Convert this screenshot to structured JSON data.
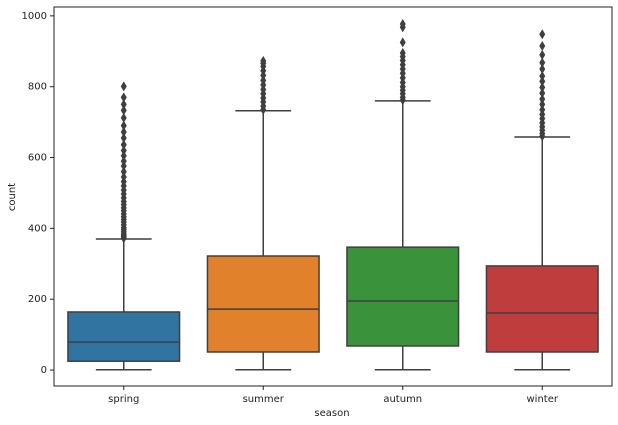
{
  "chart_data": {
    "type": "box",
    "x_label": "season",
    "y_label": "count",
    "categories": [
      "spring",
      "summer",
      "autumn",
      "winter"
    ],
    "series": [
      {
        "name": "spring",
        "color": "#3274a1",
        "low": 1,
        "q1": 25,
        "median": 79,
        "q3": 164,
        "high": 370,
        "outliers": [
          372,
          376,
          380,
          384,
          390,
          396,
          402,
          410,
          418,
          425,
          433,
          441,
          450,
          458,
          467,
          476,
          486,
          497,
          508,
          520,
          532,
          545,
          560,
          576,
          590,
          605,
          620,
          636,
          655,
          672,
          690,
          712,
          733,
          750,
          770,
          801
        ]
      },
      {
        "name": "summer",
        "color": "#e1812c",
        "low": 1,
        "q1": 51,
        "median": 172,
        "q3": 322,
        "high": 732,
        "outliers": [
          735,
          745,
          757,
          768,
          780,
          792,
          805,
          818,
          832,
          845,
          857,
          866,
          873
        ]
      },
      {
        "name": "autumn",
        "color": "#3a923a",
        "low": 1,
        "q1": 68,
        "median": 195,
        "q3": 347,
        "high": 760,
        "outliers": [
          762,
          770,
          780,
          790,
          800,
          812,
          825,
          838,
          850,
          862,
          874,
          885,
          895,
          925,
          968,
          977
        ]
      },
      {
        "name": "winter",
        "color": "#c03d3e",
        "low": 1,
        "q1": 51,
        "median": 161,
        "q3": 294,
        "high": 658,
        "outliers": [
          660,
          668,
          677,
          687,
          698,
          710,
          722,
          735,
          750,
          765,
          782,
          798,
          815,
          830,
          850,
          868,
          890,
          915,
          948
        ]
      }
    ],
    "ylim": [
      -45,
      1025
    ],
    "yticks": [
      0,
      200,
      400,
      600,
      800,
      1000
    ]
  }
}
